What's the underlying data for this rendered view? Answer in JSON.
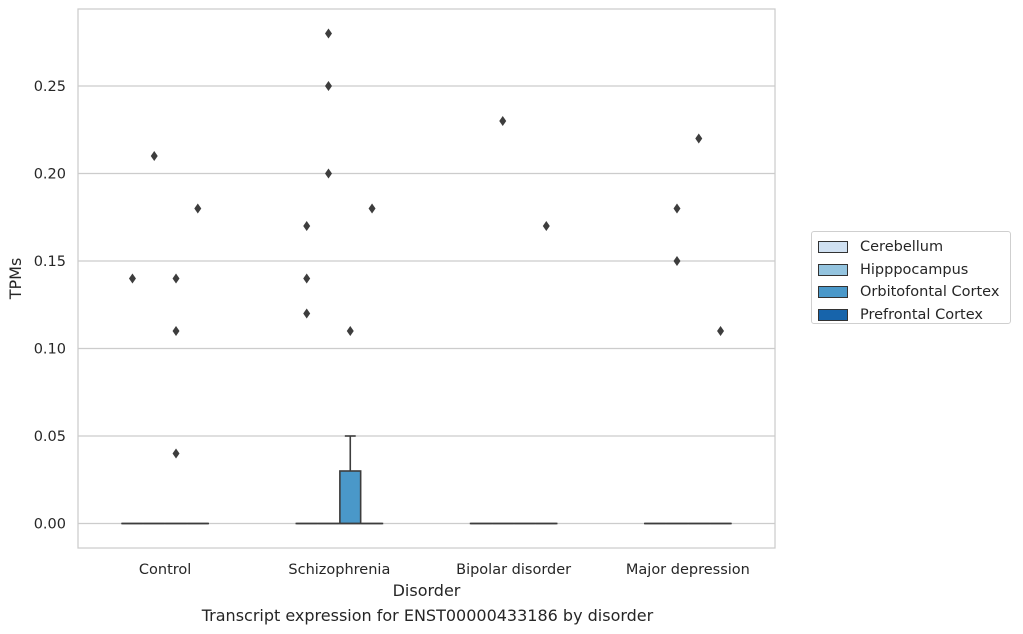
{
  "chart_data": {
    "type": "boxplot",
    "xlabel": "Disorder",
    "ylabel": "TPMs",
    "caption": "Transcript expression for ENST00000433186 by disorder",
    "categories": [
      "Control",
      "Schizophrenia",
      "Bipolar disorder",
      "Major depression"
    ],
    "ylim": [
      -0.014,
      0.294
    ],
    "yticks": [
      0.0,
      0.05,
      0.1,
      0.15,
      0.2,
      0.25
    ],
    "ytick_labels": [
      "0.00",
      "0.05",
      "0.10",
      "0.15",
      "0.20",
      "0.25"
    ],
    "grid": "horizontal",
    "legend_position": "right",
    "series": [
      {
        "name": "Cerebellum",
        "color": "#d0e1f2",
        "boxes": [
          {
            "q1": 0,
            "median": 0,
            "q3": 0,
            "whisker_low": 0,
            "whisker_high": 0,
            "outliers": [
              0.14
            ]
          },
          {
            "q1": 0,
            "median": 0,
            "q3": 0,
            "whisker_low": 0,
            "whisker_high": 0,
            "outliers": [
              0.12,
              0.14,
              0.17
            ]
          },
          {
            "q1": 0,
            "median": 0,
            "q3": 0,
            "whisker_low": 0,
            "whisker_high": 0,
            "outliers": []
          },
          {
            "q1": 0,
            "median": 0,
            "q3": 0,
            "whisker_low": 0,
            "whisker_high": 0,
            "outliers": []
          }
        ]
      },
      {
        "name": "Hipppocampus",
        "color": "#94c4df",
        "boxes": [
          {
            "q1": 0,
            "median": 0,
            "q3": 0,
            "whisker_low": 0,
            "whisker_high": 0,
            "outliers": [
              0.21
            ]
          },
          {
            "q1": 0,
            "median": 0,
            "q3": 0,
            "whisker_low": 0,
            "whisker_high": 0,
            "outliers": [
              0.2,
              0.25,
              0.28
            ]
          },
          {
            "q1": 0,
            "median": 0,
            "q3": 0,
            "whisker_low": 0,
            "whisker_high": 0,
            "outliers": [
              0.23
            ]
          },
          {
            "q1": 0,
            "median": 0,
            "q3": 0,
            "whisker_low": 0,
            "whisker_high": 0,
            "outliers": [
              0.15,
              0.18
            ]
          }
        ]
      },
      {
        "name": "Orbitofontal Cortex",
        "color": "#4a98c9",
        "boxes": [
          {
            "q1": 0,
            "median": 0,
            "q3": 0,
            "whisker_low": 0,
            "whisker_high": 0,
            "outliers": [
              0.04,
              0.11,
              0.14
            ]
          },
          {
            "q1": 0,
            "median": 0,
            "q3": 0.03,
            "whisker_low": 0,
            "whisker_high": 0.05,
            "outliers": [
              0.11
            ]
          },
          {
            "q1": 0,
            "median": 0,
            "q3": 0,
            "whisker_low": 0,
            "whisker_high": 0,
            "outliers": []
          },
          {
            "q1": 0,
            "median": 0,
            "q3": 0,
            "whisker_low": 0,
            "whisker_high": 0,
            "outliers": [
              0.22
            ]
          }
        ]
      },
      {
        "name": "Prefrontal Cortex",
        "color": "#1764ab",
        "boxes": [
          {
            "q1": 0,
            "median": 0,
            "q3": 0,
            "whisker_low": 0,
            "whisker_high": 0,
            "outliers": [
              0.18
            ]
          },
          {
            "q1": 0,
            "median": 0,
            "q3": 0,
            "whisker_low": 0,
            "whisker_high": 0,
            "outliers": [
              0.18
            ]
          },
          {
            "q1": 0,
            "median": 0,
            "q3": 0,
            "whisker_low": 0,
            "whisker_high": 0,
            "outliers": [
              0.17
            ]
          },
          {
            "q1": 0,
            "median": 0,
            "q3": 0,
            "whisker_low": 0,
            "whisker_high": 0,
            "outliers": [
              0.11
            ]
          }
        ]
      }
    ]
  },
  "legend": {
    "items": [
      {
        "label": "Cerebellum",
        "color": "#d0e1f2"
      },
      {
        "label": "Hipppocampus",
        "color": "#94c4df"
      },
      {
        "label": "Orbitofontal Cortex",
        "color": "#4a98c9"
      },
      {
        "label": "Prefrontal Cortex",
        "color": "#1764ab"
      }
    ]
  }
}
